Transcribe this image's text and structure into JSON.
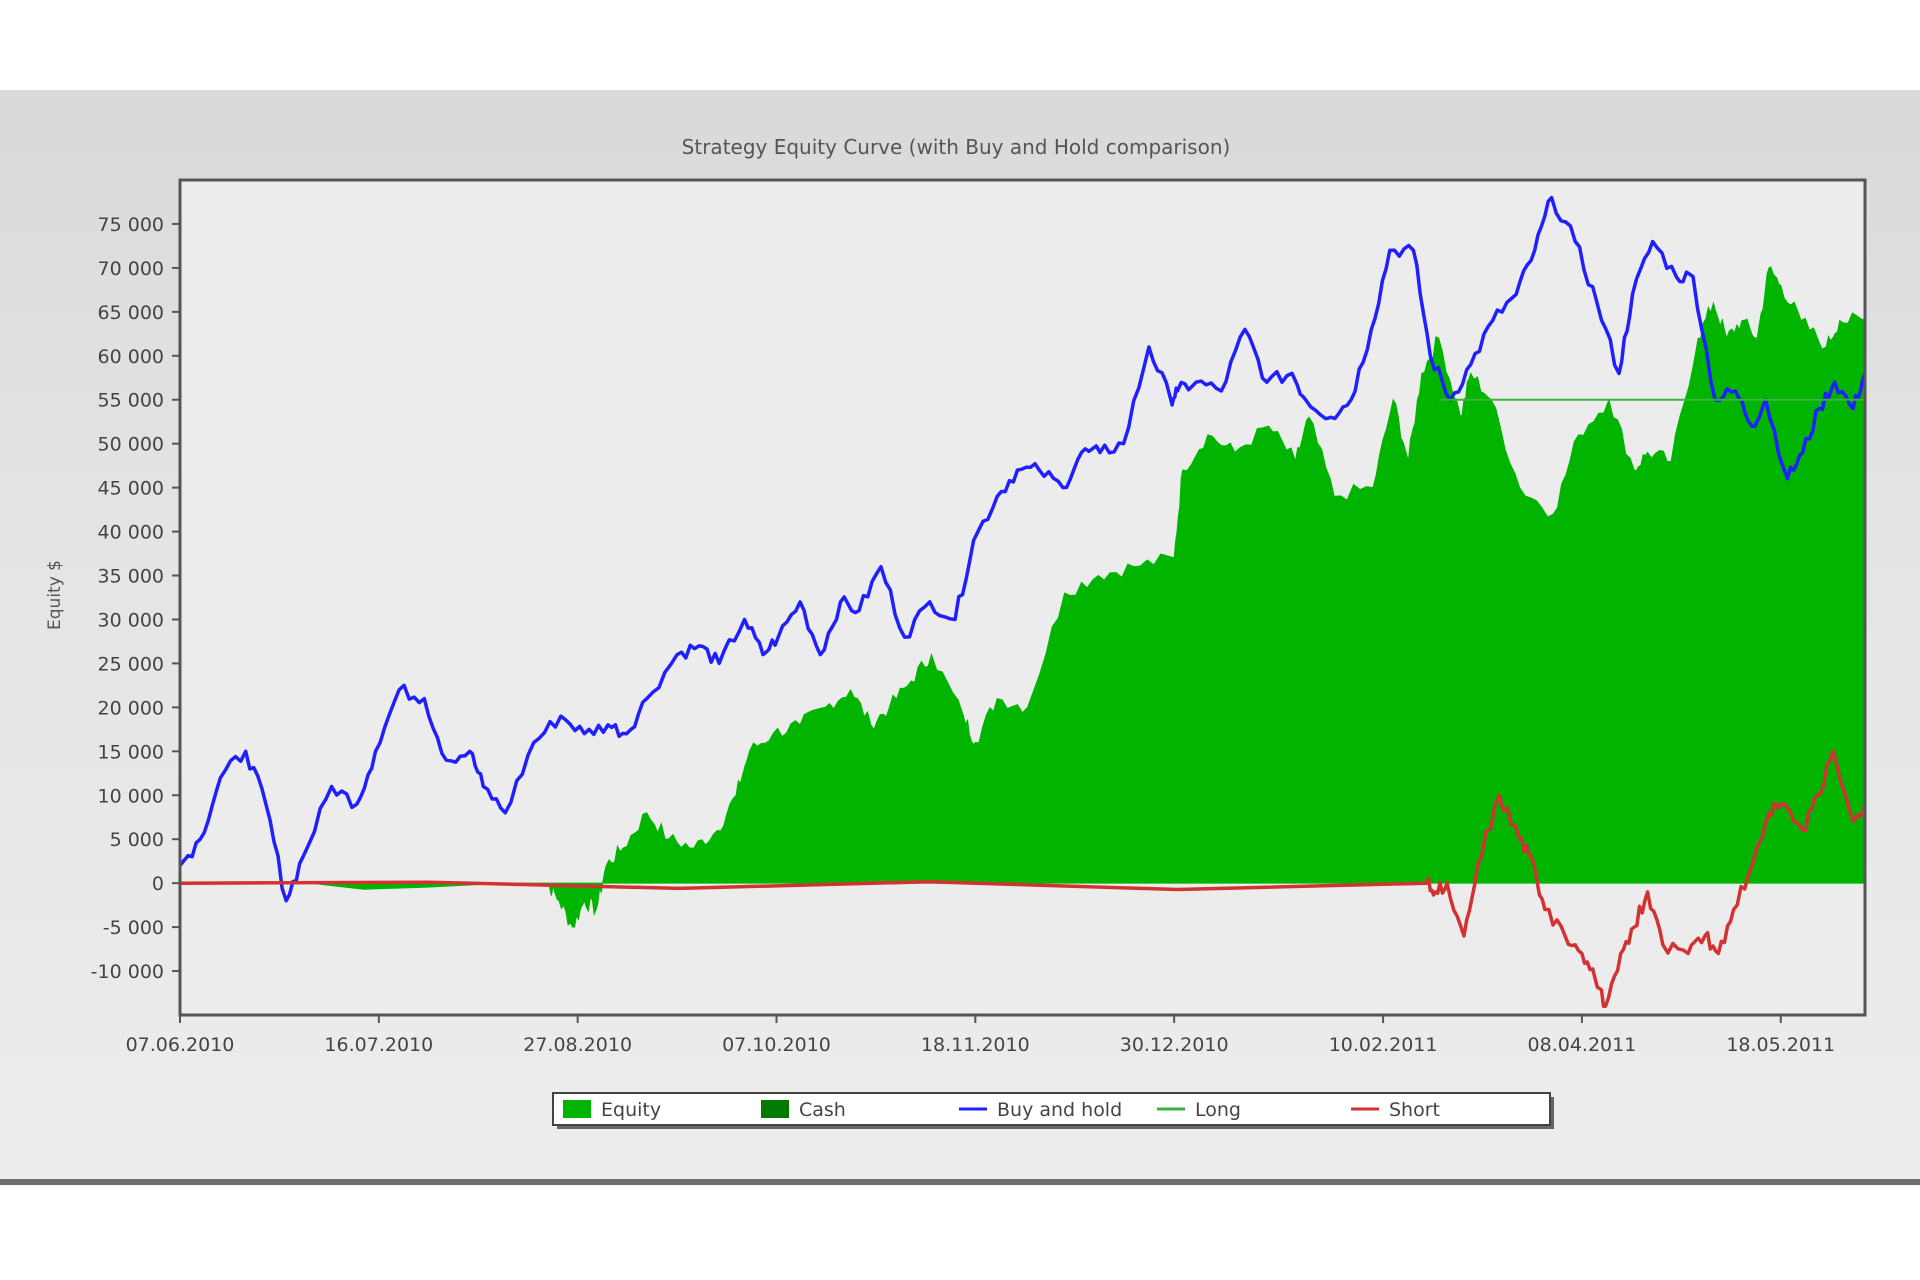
{
  "chart_data": {
    "type": "area",
    "title": "Strategy Equity Curve (with Buy and Hold comparison)",
    "ylabel": "Equity $",
    "xlabel": "",
    "ylim": [
      -15000,
      80000
    ],
    "yticks": [
      75000,
      70000,
      65000,
      60000,
      55000,
      50000,
      45000,
      40000,
      35000,
      30000,
      25000,
      20000,
      15000,
      10000,
      5000,
      0,
      -5000,
      -10000
    ],
    "ytick_labels": [
      "75 000",
      "70 000",
      "65 000",
      "60 000",
      "55 000",
      "50 000",
      "45 000",
      "40 000",
      "35 000",
      "30 000",
      "25 000",
      "20 000",
      "15 000",
      "10 000",
      "5 000",
      "0",
      "-5 000",
      "-10 000"
    ],
    "x_tick_labels": [
      "07.06.2010",
      "16.07.2010",
      "27.08.2010",
      "07.10.2010",
      "18.11.2010",
      "30.12.2010",
      "10.02.2011",
      "08.04.2011",
      "18.05.2011"
    ],
    "x_range": [
      0,
      100
    ],
    "x_ticks": [
      0,
      11.8,
      23.6,
      35.4,
      47.2,
      59.0,
      71.4,
      83.2,
      95.0
    ],
    "grid": false,
    "legend_position": "bottom",
    "legend": [
      {
        "name": "Equity",
        "kind": "box",
        "color": "#00b400"
      },
      {
        "name": "Cash",
        "kind": "box",
        "color": "#007a00"
      },
      {
        "name": "Buy and hold",
        "kind": "line",
        "color": "#1f1fff"
      },
      {
        "name": "Long",
        "kind": "line",
        "color": "#3cb43c"
      },
      {
        "name": "Short",
        "kind": "line",
        "color": "#d23232"
      }
    ],
    "series": [
      {
        "name": "Equity",
        "style": "area",
        "color": "#00b400",
        "x": [
          0,
          21.8,
          22.5,
          23.3,
          24.0,
          24.7,
          25.3,
          26.3,
          27.7,
          29.0,
          30.5,
          31.9,
          33.0,
          33.8,
          35.2,
          36.8,
          38.3,
          39.8,
          41.0,
          42.1,
          43.4,
          44.6,
          46.5,
          47.2,
          48.5,
          50.3,
          52.5,
          54.5,
          56.6,
          59.0,
          59.5,
          61.0,
          62.6,
          64.6,
          66.2,
          67.0,
          68.5,
          70.8,
          72.0,
          72.9,
          73.7,
          74.7,
          76.0,
          76.6,
          77.8,
          79.5,
          81.5,
          83.0,
          84.8,
          86.3,
          87.1,
          88.5,
          90.1,
          91.0,
          91.8,
          92.7,
          93.6,
          94.3,
          95.0,
          96.2,
          97.7,
          98.5,
          100
        ],
        "y": [
          0,
          0,
          -2000,
          -5000,
          -2000,
          -3000,
          2000,
          4000,
          8000,
          5000,
          4000,
          6000,
          10000,
          15000,
          17000,
          18000,
          20000,
          22000,
          18000,
          20000,
          23000,
          26000,
          19000,
          16000,
          21000,
          20000,
          33000,
          35000,
          36000,
          37000,
          47000,
          51000,
          49000,
          52000,
          48000,
          53000,
          44000,
          45000,
          55000,
          48000,
          58000,
          62000,
          53000,
          58000,
          55000,
          45000,
          42000,
          51000,
          55000,
          47000,
          49000,
          48000,
          62000,
          66000,
          62000,
          64000,
          62000,
          70000,
          68000,
          64000,
          61000,
          64000,
          64000
        ]
      },
      {
        "name": "Buy and hold",
        "style": "line",
        "color": "#1f1fff",
        "x": [
          0,
          1.2,
          2.4,
          3.9,
          5.1,
          6.3,
          7.3,
          9.0,
          10.5,
          11.6,
          13.0,
          14.5,
          15.8,
          17.2,
          18.0,
          19.3,
          21.0,
          22.6,
          24.0,
          25.4,
          26.5,
          27.7,
          29.5,
          30.8,
          32.0,
          33.5,
          34.6,
          35.5,
          36.8,
          38.0,
          39.2,
          40.3,
          41.6,
          43.0,
          44.5,
          46.0,
          47.1,
          48.5,
          49.7,
          51.0,
          52.4,
          53.5,
          54.6,
          56.0,
          57.5,
          58.8,
          59.2,
          60.3,
          61.8,
          63.2,
          64.5,
          66.0,
          66.8,
          68.3,
          69.5,
          70.7,
          71.8,
          73.2,
          74.2,
          75.4,
          76.6,
          77.9,
          79.3,
          80.4,
          81.4,
          82.8,
          84.1,
          85.4,
          86.2,
          87.4,
          88.8,
          89.8,
          91.1,
          92.3,
          93.3,
          94.1,
          95.4,
          96.3,
          97.3,
          98.2,
          99.3,
          100
        ],
        "y": [
          2000,
          5000,
          12000,
          15000,
          9000,
          -2000,
          3000,
          11000,
          9000,
          15000,
          22000,
          21000,
          14000,
          15000,
          11000,
          8000,
          16000,
          19000,
          17000,
          18000,
          17000,
          21000,
          26000,
          27000,
          25000,
          30000,
          26000,
          28000,
          32000,
          26000,
          32000,
          31000,
          36000,
          28000,
          32000,
          30000,
          39000,
          44000,
          47000,
          47000,
          45000,
          49000,
          49000,
          50000,
          61000,
          55000,
          56000,
          57000,
          56000,
          63000,
          57000,
          58000,
          55000,
          53000,
          55000,
          63000,
          72000,
          72000,
          60000,
          55000,
          59000,
          64000,
          67000,
          72000,
          78000,
          73000,
          66000,
          58000,
          67000,
          73000,
          69000,
          69000,
          55000,
          56000,
          52000,
          55000,
          46000,
          49000,
          54000,
          57000,
          54000,
          58000
        ]
      },
      {
        "name": "Long",
        "style": "line",
        "color": "#3cb43c",
        "x": [
          74.7,
          100
        ],
        "y": [
          55000,
          55000
        ]
      },
      {
        "name": "Short",
        "style": "line",
        "color": "#d23232",
        "x": [
          0,
          74.0,
          74.5,
          75.2,
          76.2,
          77.0,
          78.3,
          79.5,
          80.2,
          81.0,
          82.2,
          83.2,
          84.0,
          84.6,
          85.5,
          86.3,
          87.1,
          88.0,
          89.5,
          90.5,
          91.3,
          92.2,
          93.3,
          94.3,
          95.0,
          96.3,
          97.2,
          98.1,
          99.3,
          100
        ],
        "y": [
          0,
          0,
          -1000,
          0,
          -6000,
          2000,
          10000,
          5000,
          3000,
          -3000,
          -6000,
          -8000,
          -11000,
          -14000,
          -8000,
          -5000,
          -1000,
          -7000,
          -8000,
          -6000,
          -8000,
          -3000,
          2000,
          8000,
          9000,
          6000,
          10000,
          15000,
          7000,
          9000
        ]
      }
    ]
  }
}
